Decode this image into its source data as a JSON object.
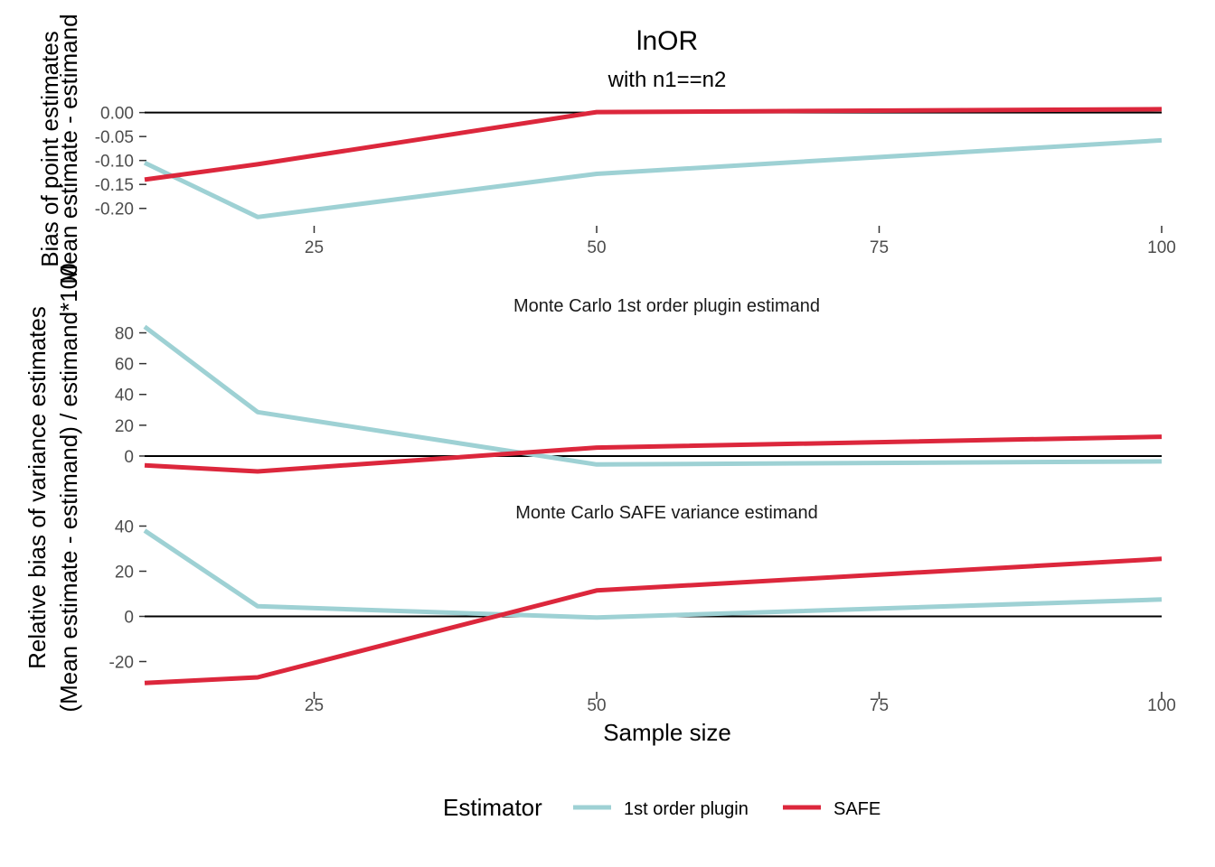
{
  "title": "lnOR",
  "subtitle": "with n1==n2",
  "x_label": "Sample size",
  "y_label_top": [
    "Bias of point estimates",
    "Mean estimate - estimand"
  ],
  "y_label_bottom": [
    "Relative bias of variance estimates",
    "(Mean estimate - estimand) / estimand*100"
  ],
  "legend": {
    "title": "Estimator",
    "position": "bottom"
  },
  "colors": {
    "1st order plugin": "#9ed1d4",
    "SAFE": "#dc273c"
  },
  "chart_data": [
    {
      "type": "line",
      "panel": "point-bias",
      "strip": "",
      "x": [
        10,
        20,
        50,
        100
      ],
      "xlim": [
        10,
        100
      ],
      "x_ticks": [
        25,
        50,
        75,
        100
      ],
      "ylim": [
        -0.225,
        0.005
      ],
      "y_ticks": [
        0.0,
        -0.05,
        -0.1,
        -0.15,
        -0.2
      ],
      "y_tick_labels": [
        "0.00",
        "-0.05",
        "-0.10",
        "-0.15",
        "-0.20"
      ],
      "reference_line": 0,
      "show_x_axis": true,
      "series": [
        {
          "name": "1st order plugin",
          "values": [
            -0.105,
            -0.218,
            -0.128,
            -0.058
          ]
        },
        {
          "name": "SAFE",
          "values": [
            -0.14,
            -0.108,
            0.001,
            0.007
          ]
        }
      ]
    },
    {
      "type": "line",
      "panel": "variance-bias-plugin",
      "strip": "Monte Carlo 1st order plugin estimand",
      "x": [
        10,
        20,
        50,
        100
      ],
      "xlim": [
        10,
        100
      ],
      "x_ticks": [
        25,
        50,
        75,
        100
      ],
      "ylim": [
        -10,
        85
      ],
      "y_ticks": [
        80,
        60,
        40,
        20,
        0
      ],
      "y_tick_labels": [
        "80",
        "60",
        "40",
        "20",
        "0"
      ],
      "reference_line": 0,
      "show_x_axis": false,
      "series": [
        {
          "name": "1st order plugin",
          "values": [
            84,
            28.5,
            -5.5,
            -3.5
          ]
        },
        {
          "name": "SAFE",
          "values": [
            -6,
            -10,
            5.5,
            12.5
          ]
        }
      ]
    },
    {
      "type": "line",
      "panel": "variance-bias-safe",
      "strip": "Monte Carlo SAFE variance estimand",
      "x": [
        10,
        20,
        50,
        100
      ],
      "xlim": [
        10,
        100
      ],
      "x_ticks": [
        25,
        50,
        75,
        100
      ],
      "x_tick_labels": [
        "25",
        "50",
        "75",
        "100"
      ],
      "ylim": [
        -31,
        41
      ],
      "y_ticks": [
        40,
        20,
        0,
        -20
      ],
      "y_tick_labels": [
        "40",
        "20",
        "0",
        "-20"
      ],
      "reference_line": 0,
      "show_x_axis": true,
      "series": [
        {
          "name": "1st order plugin",
          "values": [
            38,
            4.5,
            -0.5,
            7.5
          ]
        },
        {
          "name": "SAFE",
          "values": [
            -29.5,
            -27,
            11.5,
            25.5
          ]
        }
      ]
    }
  ]
}
